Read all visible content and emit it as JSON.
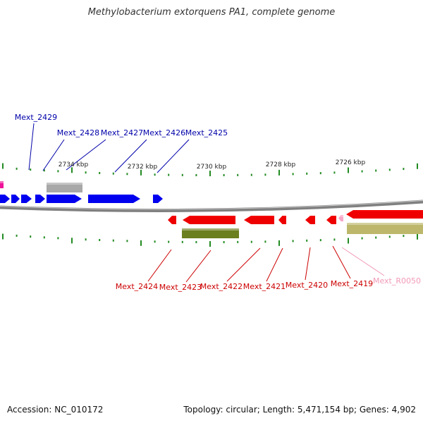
{
  "title": "Methylobacterium extorquens PA1, complete genome",
  "footer": {
    "accession": "Accession: NC_010172",
    "summary": "Topology: circular; Length: 5,471,154 bp; Genes: 4,902"
  },
  "colors": {
    "forward_gene": "#0000ee",
    "reverse_gene": "#ee0000",
    "trna": "#ee1199",
    "rrna_light": "#f7a8c8",
    "tick": "#228b22",
    "backbone": "#808080",
    "label_forward": "#0000aa",
    "label_reverse": "#cc0000",
    "label_rna": "#f09ab8",
    "forward_feature": "#a8a8a8",
    "reverse_feature_dark": "#6b7f1e",
    "reverse_feature_light": "#bdb76b"
  },
  "scale_labels": [
    "2734 kbp",
    "2732 kbp",
    "2730 kbp",
    "2728 kbp",
    "2726 kbp"
  ],
  "forward_labels": [
    "Mext_2429",
    "Mext_2428",
    "Mext_2427",
    "Mext_2426",
    "Mext_2425"
  ],
  "reverse_labels": [
    "Mext_2424",
    "Mext_2423",
    "Mext_2422",
    "Mext_2421",
    "Mext_2420",
    "Mext_2419",
    "Mext_R0050"
  ]
}
